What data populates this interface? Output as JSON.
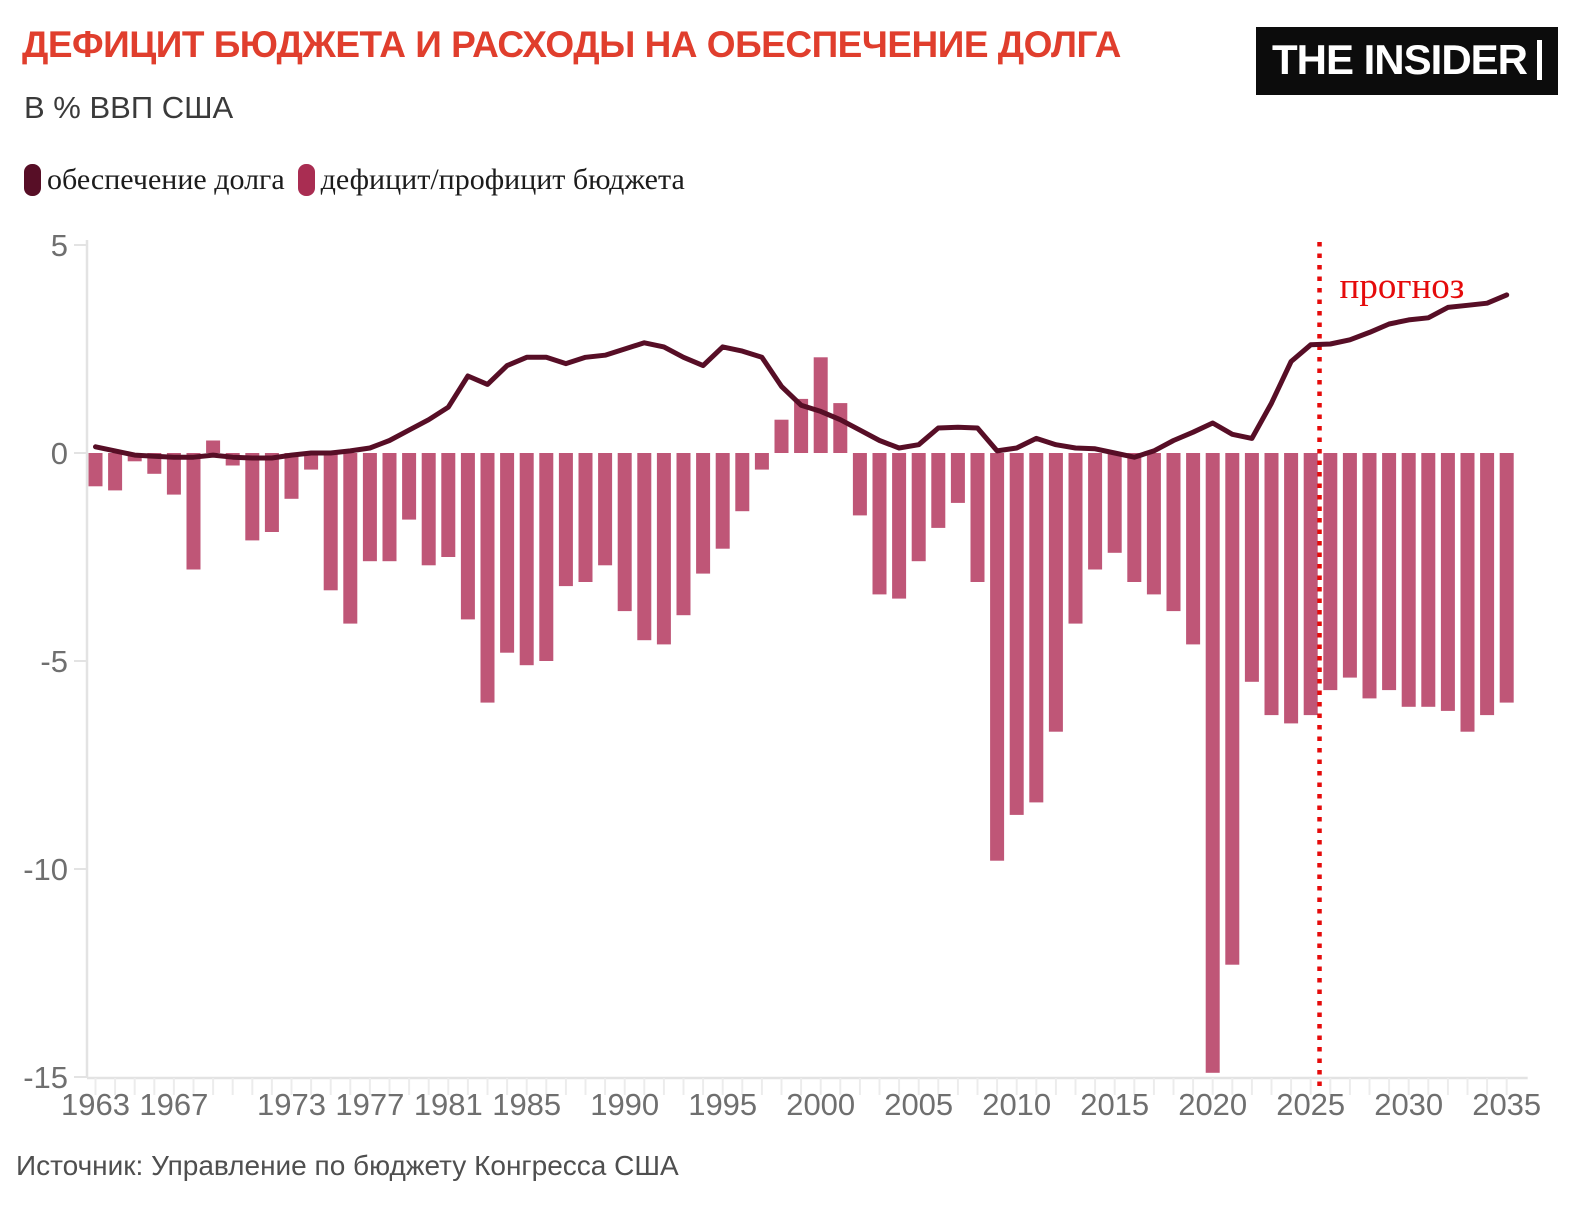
{
  "header": {
    "title": "ДЕФИЦИТ БЮДЖЕТА И РАСХОДЫ НА ОБЕСПЕЧЕНИЕ ДОЛГА",
    "subtitle": "В % ВВП США",
    "logo_text": "THE INSIDER"
  },
  "legend": [
    {
      "label": "обеспечение долга",
      "color": "#570e26"
    },
    {
      "label": "дефицит/профицит бюджета",
      "color": "#a92d52"
    }
  ],
  "footer": {
    "source": "Источник: Управление по бюджету Конгресса США"
  },
  "colors": {
    "title": "#e03e2d",
    "bar": "#bf5677",
    "line": "#570e26",
    "forecast": "#e50b0b",
    "axis": "#e3e3e3",
    "tick": "#ececec",
    "tick_label": "#6f6f6f"
  },
  "chart_data": {
    "type": "bar",
    "title": "ДЕФИЦИТ БЮДЖЕТА И РАСХОДЫ НА ОБЕСПЕЧЕНИЕ ДОЛГА",
    "subtitle": "В % ВВП США",
    "xlabel": "",
    "ylabel": "% ВВП США",
    "ylim": [
      -15,
      5
    ],
    "y_ticks": [
      5,
      0,
      -5,
      -10,
      -15
    ],
    "x_tick_labels": [
      1963,
      1967,
      1973,
      1977,
      1981,
      1985,
      1990,
      1995,
      2000,
      2005,
      2010,
      2015,
      2020,
      2025,
      2030,
      2035
    ],
    "grid": false,
    "legend_position": "top-left",
    "forecast": {
      "label": "прогноз",
      "boundary_year": 2025.45
    },
    "years": [
      1963,
      1964,
      1965,
      1966,
      1967,
      1968,
      1969,
      1970,
      1971,
      1972,
      1973,
      1974,
      1975,
      1976,
      1977,
      1978,
      1979,
      1980,
      1981,
      1982,
      1983,
      1984,
      1985,
      1986,
      1987,
      1988,
      1989,
      1990,
      1991,
      1992,
      1993,
      1994,
      1995,
      1996,
      1997,
      1998,
      1999,
      2000,
      2001,
      2002,
      2003,
      2004,
      2005,
      2006,
      2007,
      2008,
      2009,
      2010,
      2011,
      2012,
      2013,
      2014,
      2015,
      2016,
      2017,
      2018,
      2019,
      2020,
      2021,
      2022,
      2023,
      2024,
      2025,
      2026,
      2027,
      2028,
      2029,
      2030,
      2031,
      2032,
      2033,
      2034,
      2035
    ],
    "series": [
      {
        "name": "обеспечение долга",
        "type": "line",
        "values": [
          0.15,
          0.05,
          -0.05,
          -0.08,
          -0.1,
          -0.1,
          -0.05,
          -0.1,
          -0.12,
          -0.12,
          -0.05,
          0.0,
          0.0,
          0.05,
          0.12,
          0.3,
          0.55,
          0.8,
          1.1,
          1.85,
          1.65,
          2.1,
          2.3,
          2.3,
          2.15,
          2.3,
          2.35,
          2.5,
          2.65,
          2.55,
          2.3,
          2.1,
          2.55,
          2.45,
          2.3,
          1.6,
          1.15,
          1.0,
          0.8,
          0.55,
          0.3,
          0.12,
          0.2,
          0.6,
          0.62,
          0.6,
          0.05,
          0.12,
          0.35,
          0.2,
          0.12,
          0.1,
          0.0,
          -0.1,
          0.05,
          0.3,
          0.5,
          0.72,
          0.45,
          0.35,
          1.2,
          2.2,
          2.6,
          2.62,
          2.72,
          2.9,
          3.1,
          3.2,
          3.25,
          3.5,
          3.55,
          3.6,
          3.8
        ]
      },
      {
        "name": "дефицит/профицит бюджета",
        "type": "bar",
        "values": [
          -0.8,
          -0.9,
          -0.2,
          -0.5,
          -1.0,
          -2.8,
          0.3,
          -0.3,
          -2.1,
          -1.9,
          -1.1,
          -0.4,
          -3.3,
          -4.1,
          -2.6,
          -2.6,
          -1.6,
          -2.7,
          -2.5,
          -4.0,
          -6.0,
          -4.8,
          -5.1,
          -5.0,
          -3.2,
          -3.1,
          -2.7,
          -3.8,
          -4.5,
          -4.6,
          -3.9,
          -2.9,
          -2.3,
          -1.4,
          -0.4,
          0.8,
          1.3,
          2.3,
          1.2,
          -1.5,
          -3.4,
          -3.5,
          -2.6,
          -1.8,
          -1.2,
          -3.1,
          -9.8,
          -8.7,
          -8.4,
          -6.7,
          -4.1,
          -2.8,
          -2.4,
          -3.1,
          -3.4,
          -3.8,
          -4.6,
          -14.9,
          -12.3,
          -5.5,
          -6.3,
          -6.5,
          -6.3,
          -5.7,
          -5.4,
          -5.9,
          -5.7,
          -6.1,
          -6.1,
          -6.2,
          -6.7,
          -6.3,
          -6.0
        ]
      }
    ]
  }
}
